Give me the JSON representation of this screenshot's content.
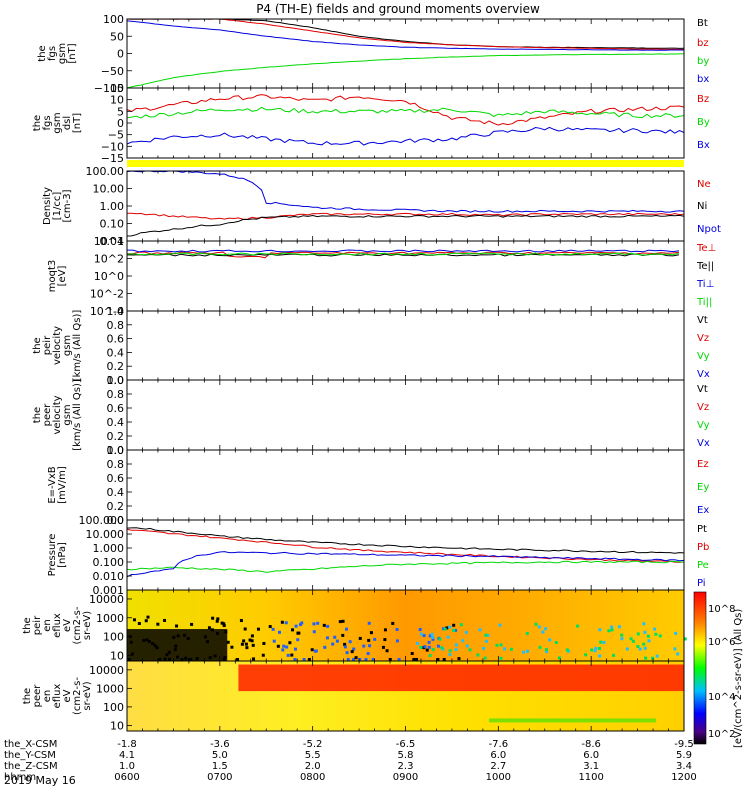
{
  "title": "P4 (TH-E) fields and ground moments overview",
  "date_label": "2019 May 16",
  "time_axis": {
    "rows": [
      {
        "label": "the_X-CSM",
        "values": [
          "-1.8",
          "-3.6",
          "-5.2",
          "-6.5",
          "-7.6",
          "-8.6",
          "-9.5"
        ]
      },
      {
        "label": "the_Y-CSM",
        "values": [
          "4.1",
          "5.0",
          "5.5",
          "5.8",
          "6.0",
          "6.0",
          "5.9"
        ]
      },
      {
        "label": "the_Z-CSM",
        "values": [
          "1.0",
          "1.5",
          "2.0",
          "2.3",
          "2.7",
          "3.1",
          "3.4"
        ]
      },
      {
        "label": "hhmm",
        "values": [
          "0600",
          "0700",
          "0800",
          "0900",
          "1000",
          "1100",
          "1200"
        ]
      }
    ]
  },
  "colors": {
    "black": "#000000",
    "red": "#e00000",
    "green": "#00d800",
    "blue": "#0000dd"
  },
  "colorbar": {
    "label": "[eV/(cm^2-s-sr-eV)] (All Qs)",
    "ticks": [
      "10^8",
      "10^6",
      "10^4",
      "10^2"
    ]
  },
  "chart_data": [
    {
      "type": "line",
      "title": "P4 (TH-E) fields and ground moments overview",
      "ylabel_lines": [
        "the",
        "fgs",
        "gsm",
        "[nT]"
      ],
      "yticks": [
        "100",
        "50",
        "0",
        "−50",
        "−100"
      ],
      "ylim": [
        -100,
        100
      ],
      "x_hours": [
        6.0,
        6.5,
        7.0,
        7.5,
        8.0,
        8.5,
        9.0,
        9.5,
        10.0,
        10.5,
        11.0,
        11.5,
        12.0
      ],
      "series": [
        {
          "name": "Bt",
          "color": "#000000",
          "values": [
            100,
            100,
            100,
            95,
            75,
            50,
            35,
            25,
            20,
            18,
            17,
            16,
            15
          ]
        },
        {
          "name": "bz",
          "color": "#e00000",
          "values": [
            100,
            100,
            100,
            85,
            65,
            45,
            32,
            25,
            20,
            17,
            15,
            13,
            12
          ]
        },
        {
          "name": "by",
          "color": "#00d800",
          "values": [
            -100,
            -70,
            -52,
            -40,
            -30,
            -22,
            -15,
            -10,
            -6,
            -4,
            -3,
            -2,
            -1
          ]
        },
        {
          "name": "bx",
          "color": "#0000dd",
          "values": [
            95,
            80,
            68,
            50,
            35,
            25,
            18,
            15,
            13,
            12,
            11,
            10,
            10
          ]
        }
      ]
    },
    {
      "type": "line",
      "ylabel_lines": [
        "the",
        "fgs",
        "gsm",
        "dsl",
        "[nT]"
      ],
      "yticks": [
        "15",
        "10",
        "5",
        "0",
        "−5",
        "−10",
        "−15"
      ],
      "ylim": [
        -17,
        16
      ],
      "x_hours": [
        6.0,
        6.5,
        7.0,
        7.5,
        8.0,
        8.5,
        9.0,
        9.5,
        10.0,
        10.5,
        11.0,
        11.5,
        12.0
      ],
      "series": [
        {
          "name": "Bz",
          "color": "#e00000",
          "values": [
            5,
            8,
            11,
            12,
            10,
            12,
            10,
            2,
            -1,
            2,
            5,
            6,
            7
          ]
        },
        {
          "name": "By",
          "color": "#00d800",
          "values": [
            2,
            4,
            6,
            6,
            5,
            5,
            5,
            6,
            3,
            5,
            4,
            3,
            3
          ]
        },
        {
          "name": "Bx",
          "color": "#0000dd",
          "values": [
            -10,
            -7,
            -6,
            -8,
            -10,
            -10,
            -9,
            -8,
            -5,
            -3,
            -4,
            -4,
            -5
          ]
        }
      ]
    },
    {
      "type": "line",
      "ylabel_lines": [
        "Density",
        "[1/cc]",
        "[cm-3]"
      ],
      "yticks": [
        "100.00",
        "10.00",
        "1.00",
        "0.10",
        "0.01"
      ],
      "log_scale": true,
      "ylim": [
        0.01,
        150
      ],
      "x_hours": [
        6.0,
        6.5,
        7.0,
        7.5,
        8.0,
        8.5,
        9.0,
        9.5,
        10.0,
        10.5,
        11.0,
        11.5,
        12.0
      ],
      "series": [
        {
          "name": "Ne",
          "color": "#e00000",
          "values": [
            0.5,
            0.3,
            0.2,
            0.25,
            0.4,
            0.4,
            0.4,
            0.4,
            0.35,
            0.4,
            0.4,
            0.4,
            0.4
          ]
        },
        {
          "name": "Ni",
          "color": "#000000",
          "values": [
            0.02,
            0.05,
            0.1,
            0.25,
            0.3,
            0.3,
            0.3,
            0.3,
            0.3,
            0.3,
            0.3,
            0.3,
            0.3
          ]
        },
        {
          "name": "Npot",
          "color": "#0000dd",
          "values": [
            150,
            150,
            100,
            2,
            1,
            0.8,
            0.7,
            0.6,
            0.6,
            0.6,
            0.6,
            0.6,
            0.6
          ]
        }
      ]
    },
    {
      "type": "line",
      "ylabel_lines": [
        "moqt3",
        "[eV]"
      ],
      "legend": [
        "Te⊥",
        "Te||",
        "Ti⊥",
        "Ti||"
      ],
      "legend_colors": [
        "#e00000",
        "#000000",
        "#0000dd",
        "#00d800"
      ],
      "yticks": [
        "10^4",
        "10^2",
        "10^0",
        "10^-2",
        "10^-4"
      ]
    },
    {
      "type": "line",
      "ylabel_lines": [
        "the",
        "peir",
        "velocity",
        "gsm",
        "[km/s (All Qs)]"
      ],
      "legend": [
        "Vt",
        "Vz",
        "Vy",
        "Vx"
      ],
      "legend_colors": [
        "#000000",
        "#e00000",
        "#00d800",
        "#0000dd"
      ],
      "yticks": [
        "1.0",
        "0.8",
        "0.6",
        "0.4",
        "0.2",
        "0.0"
      ],
      "ylim": [
        0,
        1
      ]
    },
    {
      "type": "line",
      "ylabel_lines": [
        "the",
        "peer",
        "velocity",
        "gsm",
        "[km/s (All Qs)]"
      ],
      "legend": [
        "Vt",
        "Vz",
        "Vy",
        "Vx"
      ],
      "legend_colors": [
        "#000000",
        "#e00000",
        "#00d800",
        "#0000dd"
      ],
      "yticks": [
        "1.0",
        "0.8",
        "0.6",
        "0.4",
        "0.2",
        "0.0"
      ],
      "ylim": [
        0,
        1
      ]
    },
    {
      "type": "line",
      "ylabel_lines": [
        "E=-VxB",
        "[mV/m]"
      ],
      "legend": [
        "Ez",
        "Ey",
        "Ex"
      ],
      "legend_colors": [
        "#e00000",
        "#00d800",
        "#0000dd"
      ],
      "yticks": [
        "1.0",
        "0.8",
        "0.6",
        "0.4",
        "0.2",
        "0.0"
      ],
      "ylim": [
        0,
        1
      ]
    },
    {
      "type": "line",
      "ylabel_lines": [
        "Pressure",
        "[nPa]"
      ],
      "yticks": [
        "100.000",
        "10.000",
        "1.000",
        "0.100",
        "0.010",
        "0.001"
      ],
      "log_scale": true,
      "ylim": [
        0.001,
        100
      ],
      "x_hours": [
        6.0,
        6.5,
        7.0,
        7.5,
        8.0,
        8.5,
        9.0,
        9.5,
        10.0,
        10.5,
        11.0,
        11.5,
        12.0
      ],
      "series": [
        {
          "name": "Pt",
          "color": "#000000",
          "values": [
            30,
            15,
            7,
            4,
            2.5,
            1.8,
            1.3,
            1.0,
            0.8,
            0.7,
            0.6,
            0.5,
            0.45
          ]
        },
        {
          "name": "Pb",
          "color": "#e00000",
          "values": [
            20,
            10,
            5,
            2.5,
            1.2,
            0.7,
            0.5,
            0.35,
            0.25,
            0.2,
            0.15,
            0.12,
            0.1
          ]
        },
        {
          "name": "Pe",
          "color": "#00d800",
          "values": [
            0.03,
            0.04,
            0.03,
            0.02,
            0.03,
            0.05,
            0.07,
            0.08,
            0.09,
            0.1,
            0.1,
            0.1,
            0.1
          ]
        },
        {
          "name": "Pi",
          "color": "#0000dd",
          "values": [
            0.01,
            0.03,
            0.5,
            0.45,
            0.4,
            0.35,
            0.3,
            0.28,
            0.25,
            0.2,
            0.18,
            0.15,
            0.13
          ]
        }
      ]
    },
    {
      "type": "heatmap",
      "ylabel_lines": [
        "the",
        "peir",
        "en",
        "eflux",
        "eV",
        "(cm2-s-",
        "sr-eV)"
      ],
      "yticks": [
        "10000",
        "1000",
        "100",
        "10"
      ],
      "ylim": [
        5,
        30000
      ]
    },
    {
      "type": "heatmap",
      "ylabel_lines": [
        "the",
        "peer",
        "en",
        "eflux",
        "eV",
        "(cm2-s-",
        "sr-eV)"
      ],
      "yticks": [
        "10000",
        "1000",
        "100",
        "10"
      ],
      "ylim": [
        5,
        30000
      ]
    }
  ]
}
